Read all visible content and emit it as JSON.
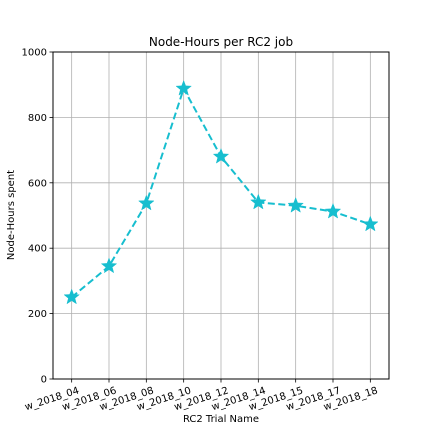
{
  "chart_data": {
    "type": "line",
    "title": "Node-Hours per RC2 job",
    "xlabel": "RC2 Trial Name",
    "ylabel": "Node-Hours spent",
    "categories": [
      "w_2018_04",
      "w_2018_06",
      "w_2018_08",
      "w_2018_10",
      "w_2018_12",
      "w_2018_14",
      "w_2018_15",
      "w_2018_17",
      "w_2018_18"
    ],
    "series": [
      {
        "values": [
          250,
          345,
          537,
          888,
          680,
          540,
          530,
          512,
          473
        ],
        "color": "#17becf",
        "line_style": "dashed",
        "marker": "star"
      }
    ],
    "ylim": [
      0,
      1000
    ],
    "yticks": [
      0,
      200,
      400,
      600,
      800,
      1000
    ],
    "grid": true,
    "xtick_rotation": "rotated"
  }
}
